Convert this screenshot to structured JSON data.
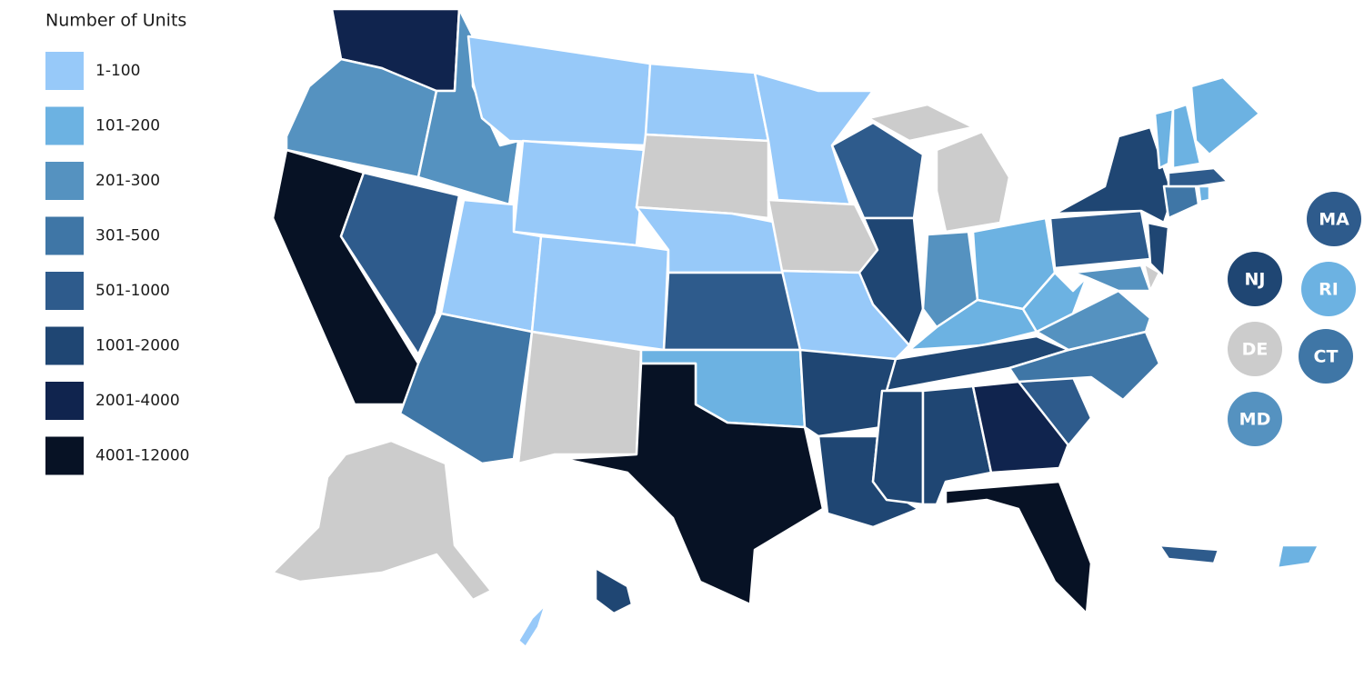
{
  "legend": {
    "title": "Number of Units",
    "items": [
      {
        "label": "1-100",
        "color": "#97c9f9"
      },
      {
        "label": "101-200",
        "color": "#6cb2e2"
      },
      {
        "label": "201-300",
        "color": "#5592c0"
      },
      {
        "label": "301-500",
        "color": "#3f76a6"
      },
      {
        "label": "501-1000",
        "color": "#2e5b8c"
      },
      {
        "label": "1001-2000",
        "color": "#1f4673"
      },
      {
        "label": "2001-4000",
        "color": "#10244e"
      },
      {
        "label": "4001-12000",
        "color": "#071225"
      }
    ]
  },
  "map": {
    "no_data_color": "#cccccc",
    "region_levels": [
      6,
      2,
      7,
      4,
      2,
      0,
      0,
      0,
      3,
      0,
      null,
      0,
      null,
      0,
      4,
      1,
      7,
      0,
      null,
      0,
      5,
      5,
      4,
      5,
      null,
      null,
      2,
      1,
      1,
      5,
      5,
      5,
      6,
      7,
      4,
      3,
      2,
      1,
      4,
      5,
      5,
      2,
      null,
      3,
      4,
      1,
      1,
      1,
      1,
      null,
      5,
      4,
      1,
      0
    ],
    "badges": [
      {
        "label": "MA",
        "level": 4
      },
      {
        "label": "NJ",
        "level": 5
      },
      {
        "label": "RI",
        "level": 1
      },
      {
        "label": "DE",
        "level": null
      },
      {
        "label": "CT",
        "level": 3
      },
      {
        "label": "MD",
        "level": 2
      }
    ]
  }
}
